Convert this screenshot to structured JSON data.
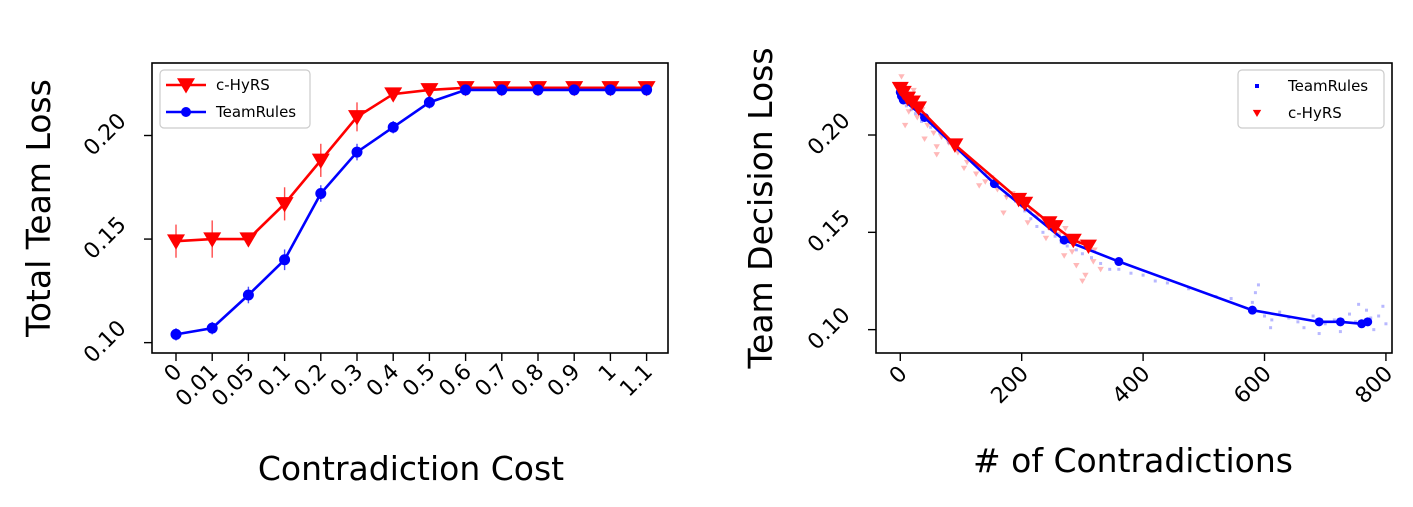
{
  "chart_data": [
    {
      "type": "line",
      "xlabel": "Contradiction Cost",
      "ylabel": "Total Team Loss",
      "categories": [
        "0",
        "0.01",
        "0.05",
        "0.1",
        "0.2",
        "0.3",
        "0.4",
        "0.5",
        "0.6",
        "0.7",
        "0.8",
        "0.9",
        "1",
        "1.1"
      ],
      "ylim": [
        0.095,
        0.235
      ],
      "yticks": [
        0.1,
        0.15,
        0.2
      ],
      "ytick_labels": [
        "0.10",
        "0.15",
        "0.20"
      ],
      "grid": false,
      "legend": "top-left",
      "series": [
        {
          "name": "c-HyRS",
          "color": "#ff0000",
          "marker": "triangle-down",
          "values": [
            0.149,
            0.15,
            0.15,
            0.167,
            0.188,
            0.209,
            0.22,
            0.222,
            0.223,
            0.223,
            0.223,
            0.223,
            0.223,
            0.223
          ],
          "errors": [
            0.008,
            0.009,
            0.003,
            0.008,
            0.008,
            0.007,
            0.003,
            0.002,
            0.001,
            0.001,
            0.001,
            0.001,
            0.001,
            0.001
          ]
        },
        {
          "name": "TeamRules",
          "color": "#0000ff",
          "marker": "circle",
          "values": [
            0.104,
            0.107,
            0.123,
            0.14,
            0.172,
            0.192,
            0.204,
            0.216,
            0.222,
            0.222,
            0.222,
            0.222,
            0.222,
            0.222
          ],
          "errors": [
            0.003,
            0.003,
            0.004,
            0.005,
            0.004,
            0.004,
            0.003,
            0.003,
            0.002,
            0.001,
            0.001,
            0.001,
            0.001,
            0.001
          ]
        }
      ]
    },
    {
      "type": "scatter",
      "xlabel": "# of Contradictions",
      "ylabel": "Team Decision Loss",
      "xlim": [
        -40,
        810
      ],
      "ylim": [
        0.088,
        0.237
      ],
      "xticks": [
        0,
        200,
        400,
        600,
        800
      ],
      "xtick_labels": [
        "0",
        "200",
        "400",
        "600",
        "800"
      ],
      "yticks": [
        0.1,
        0.15,
        0.2
      ],
      "ytick_labels": [
        "0.10",
        "0.15",
        "0.20"
      ],
      "grid": false,
      "legend": "top-right",
      "series": [
        {
          "name": "TeamRules",
          "color": "#0000ff",
          "marker": "square",
          "line": {
            "x": [
              0,
              2,
              5,
              40,
              155,
              270,
              360,
              580,
              690,
              725,
              760,
              770
            ],
            "y": [
              0.222,
              0.22,
              0.218,
              0.209,
              0.175,
              0.146,
              0.135,
              0.11,
              0.104,
              0.104,
              0.103,
              0.104
            ]
          },
          "scatter": {
            "x": [
              3,
              10,
              18,
              25,
              35,
              50,
              65,
              80,
              100,
              120,
              140,
              160,
              175,
              190,
              205,
              215,
              225,
              235,
              245,
              255,
              265,
              275,
              290,
              300,
              315,
              330,
              345,
              360,
              380,
              400,
              420,
              440,
              475,
              520,
              545,
              580,
              590,
              600,
              612,
              625,
              640,
              655,
              665,
              680,
              690,
              700,
              715,
              725,
              740,
              750,
              755,
              762,
              768,
              775,
              780,
              788,
              795,
              800,
              585,
              610
            ],
            "y": [
              0.225,
              0.215,
              0.213,
              0.211,
              0.207,
              0.204,
              0.201,
              0.196,
              0.192,
              0.186,
              0.18,
              0.174,
              0.169,
              0.166,
              0.161,
              0.157,
              0.153,
              0.15,
              0.152,
              0.148,
              0.145,
              0.143,
              0.141,
              0.139,
              0.137,
              0.134,
              0.131,
              0.131,
              0.129,
              0.128,
              0.125,
              0.124,
              0.121,
              0.117,
              0.116,
              0.114,
              0.123,
              0.107,
              0.105,
              0.109,
              0.106,
              0.104,
              0.101,
              0.107,
              0.098,
              0.103,
              0.105,
              0.099,
              0.108,
              0.104,
              0.113,
              0.102,
              0.11,
              0.106,
              0.1,
              0.107,
              0.112,
              0.103,
              0.119,
              0.101
            ]
          }
        },
        {
          "name": "c-HyRS",
          "color": "#ff0000",
          "marker": "triangle-down",
          "line": {
            "x": [
              0,
              5,
              12,
              20,
              30,
              90,
              195,
              205,
              245,
              255,
              285,
              310
            ],
            "y": [
              0.224,
              0.222,
              0.219,
              0.217,
              0.214,
              0.195,
              0.167,
              0.165,
              0.155,
              0.153,
              0.146,
              0.143
            ]
          },
          "scatter": {
            "x": [
              2,
              6,
              10,
              14,
              20,
              28,
              36,
              45,
              55,
              68,
              80,
              95,
              110,
              125,
              140,
              160,
              175,
              185,
              200,
              215,
              225,
              235,
              250,
              262,
              272,
              283,
              295,
              305,
              318,
              330,
              8,
              22,
              40,
              60,
              105,
              150,
              170,
              210,
              240,
              270,
              290,
              300,
              320,
              60,
              130
            ],
            "y": [
              0.23,
              0.226,
              0.219,
              0.212,
              0.216,
              0.209,
              0.213,
              0.205,
              0.201,
              0.199,
              0.196,
              0.191,
              0.186,
              0.18,
              0.176,
              0.172,
              0.168,
              0.17,
              0.164,
              0.161,
              0.158,
              0.157,
              0.154,
              0.149,
              0.152,
              0.14,
              0.145,
              0.128,
              0.135,
              0.131,
              0.205,
              0.223,
              0.198,
              0.194,
              0.183,
              0.178,
              0.16,
              0.155,
              0.147,
              0.138,
              0.133,
              0.125,
              0.141,
              0.19,
              0.174
            ]
          }
        }
      ]
    }
  ]
}
